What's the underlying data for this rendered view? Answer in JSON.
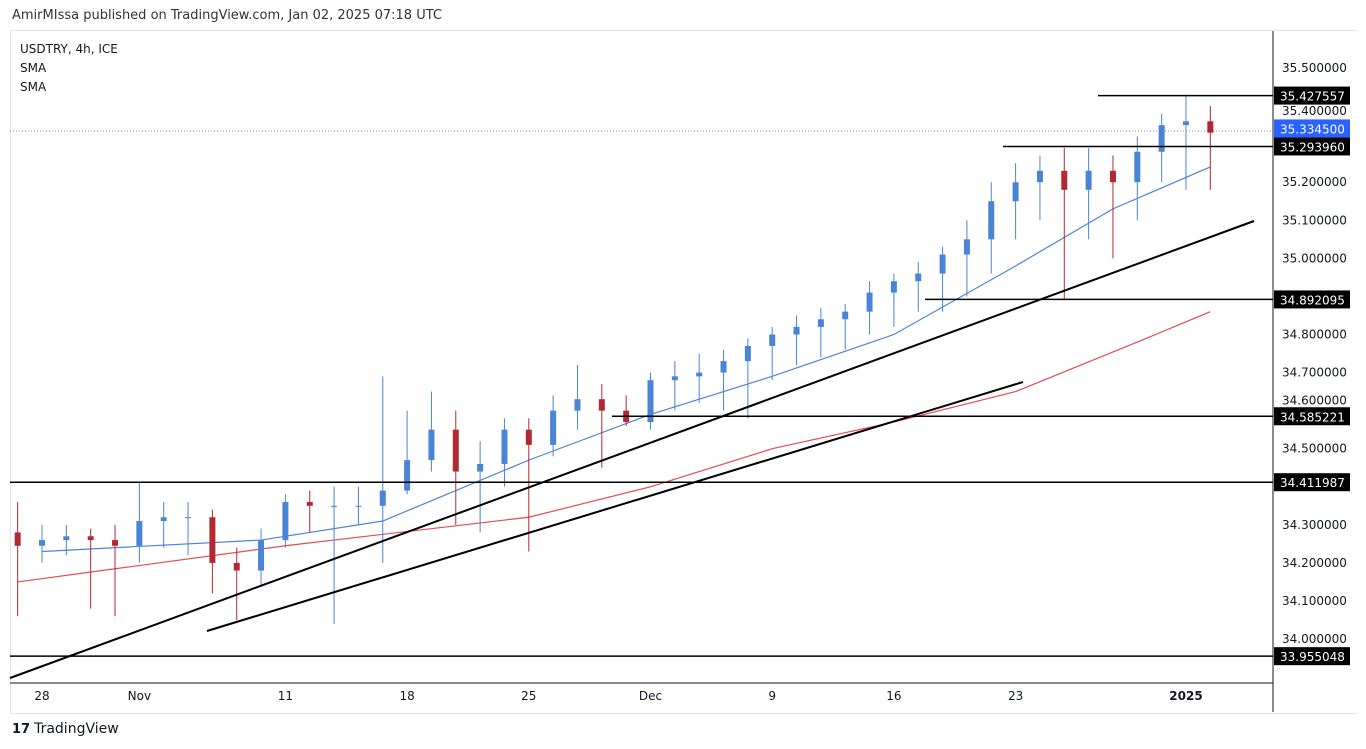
{
  "header": {
    "published": "AmirMIssa published on TradingView.com, Jan 02, 2025 07:18 UTC"
  },
  "legend": {
    "symbol": "USDTRY, 4h, ICE",
    "ind1": "SMA",
    "ind2": "SMA"
  },
  "footer": {
    "brand": "TradingView",
    "logo_icon": "tradingview-logo-icon"
  },
  "chart_data": {
    "type": "candlestick",
    "title": "USDTRY, 4h, ICE",
    "ylim": [
      33.93,
      35.6
    ],
    "y_ticks": [
      "35.500000",
      "35.400000",
      "35.200000",
      "35.100000",
      "35.000000",
      "34.800000",
      "34.700000",
      "34.600000",
      "34.500000",
      "34.300000",
      "34.200000",
      "34.100000",
      "34.000000"
    ],
    "x_ticks": [
      {
        "label": "28",
        "day": 1
      },
      {
        "label": "Nov",
        "day": 5
      },
      {
        "label": "11",
        "day": 11
      },
      {
        "label": "18",
        "day": 16
      },
      {
        "label": "25",
        "day": 21
      },
      {
        "label": "Dec",
        "day": 26
      },
      {
        "label": "9",
        "day": 31
      },
      {
        "label": "16",
        "day": 36
      },
      {
        "label": "23",
        "day": 41
      },
      {
        "label": "2025",
        "day": 48
      }
    ],
    "colors": {
      "up": "#4a84d4",
      "down": "#b22833",
      "sma_fast": "#4a84d4",
      "sma_slow": "#e84a52",
      "last": "#2962ff"
    },
    "candles_approx_daily": [
      [
        34.28,
        34.36,
        34.06,
        34.245
      ],
      [
        34.245,
        34.3,
        34.2,
        34.26
      ],
      [
        34.26,
        34.3,
        34.22,
        34.27
      ],
      [
        34.27,
        34.29,
        34.08,
        34.26
      ],
      [
        34.26,
        34.3,
        34.06,
        34.245
      ],
      [
        34.245,
        34.41,
        34.2,
        34.31
      ],
      [
        34.31,
        34.36,
        34.24,
        34.32
      ],
      [
        34.32,
        34.36,
        34.22,
        34.32
      ],
      [
        34.32,
        34.34,
        34.12,
        34.2
      ],
      [
        34.2,
        34.24,
        34.05,
        34.18
      ],
      [
        34.18,
        34.29,
        34.14,
        34.26
      ],
      [
        34.26,
        34.38,
        34.24,
        34.36
      ],
      [
        34.36,
        34.39,
        34.28,
        34.35
      ],
      [
        34.35,
        34.4,
        34.04,
        34.35
      ],
      [
        34.35,
        34.4,
        34.3,
        34.35
      ],
      [
        34.35,
        34.69,
        34.2,
        34.39
      ],
      [
        34.39,
        34.6,
        34.38,
        34.47
      ],
      [
        34.47,
        34.65,
        34.44,
        34.55
      ],
      [
        34.55,
        34.6,
        34.3,
        34.44
      ],
      [
        34.44,
        34.52,
        34.28,
        34.46
      ],
      [
        34.46,
        34.58,
        34.4,
        34.55
      ],
      [
        34.55,
        34.58,
        34.23,
        34.51
      ],
      [
        34.51,
        34.64,
        34.48,
        34.6
      ],
      [
        34.6,
        34.72,
        34.55,
        34.63
      ],
      [
        34.63,
        34.67,
        34.45,
        34.6
      ],
      [
        34.6,
        34.64,
        34.56,
        34.57
      ],
      [
        34.57,
        34.7,
        34.55,
        34.68
      ],
      [
        34.68,
        34.73,
        34.6,
        34.69
      ],
      [
        34.69,
        34.75,
        34.62,
        34.7
      ],
      [
        34.7,
        34.76,
        34.6,
        34.73
      ],
      [
        34.73,
        34.79,
        34.58,
        34.77
      ],
      [
        34.77,
        34.82,
        34.68,
        34.8
      ],
      [
        34.8,
        34.85,
        34.72,
        34.82
      ],
      [
        34.82,
        34.87,
        34.74,
        34.84
      ],
      [
        34.84,
        34.88,
        34.76,
        34.86
      ],
      [
        34.86,
        34.94,
        34.8,
        34.91
      ],
      [
        34.91,
        34.96,
        34.82,
        34.94
      ],
      [
        34.94,
        34.99,
        34.86,
        34.96
      ],
      [
        34.96,
        35.03,
        34.86,
        35.01
      ],
      [
        35.01,
        35.1,
        34.9,
        35.05
      ],
      [
        35.05,
        35.2,
        34.96,
        35.15
      ],
      [
        35.15,
        35.25,
        35.05,
        35.2
      ],
      [
        35.2,
        35.27,
        35.1,
        35.23
      ],
      [
        35.23,
        35.29,
        34.89,
        35.18
      ],
      [
        35.18,
        35.29,
        35.05,
        35.23
      ],
      [
        35.23,
        35.27,
        35.0,
        35.2
      ],
      [
        35.2,
        35.32,
        35.1,
        35.28
      ],
      [
        35.28,
        35.38,
        35.2,
        35.35
      ],
      [
        35.35,
        35.43,
        35.18,
        35.36
      ],
      [
        35.36,
        35.4,
        35.18,
        35.33
      ]
    ],
    "sma_fast": [
      [
        1,
        34.23
      ],
      [
        10,
        34.26
      ],
      [
        15,
        34.31
      ],
      [
        21,
        34.47
      ],
      [
        26,
        34.59
      ],
      [
        31,
        34.69
      ],
      [
        36,
        34.8
      ],
      [
        41,
        34.98
      ],
      [
        45,
        35.13
      ],
      [
        49,
        35.24
      ]
    ],
    "sma_slow": [
      [
        0,
        34.15
      ],
      [
        11,
        34.245
      ],
      [
        21,
        34.32
      ],
      [
        26,
        34.4
      ],
      [
        31,
        34.5
      ],
      [
        36,
        34.57
      ],
      [
        41,
        34.65
      ],
      [
        46,
        34.78
      ],
      [
        49,
        34.86
      ]
    ],
    "horizontal_levels": [
      "35.427557",
      "35.293960",
      "34.892095",
      "34.585221",
      "34.411987",
      "33.955048"
    ],
    "last_price": "35.334500"
  }
}
